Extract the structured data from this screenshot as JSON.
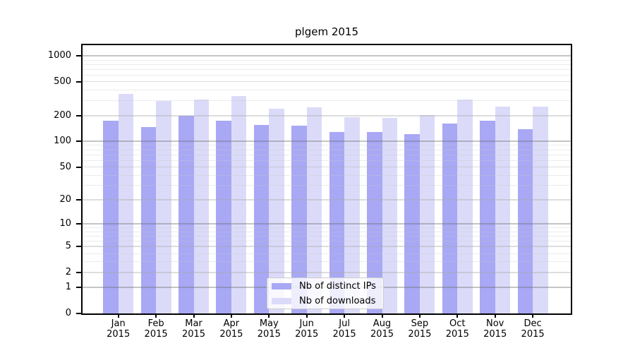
{
  "chart_data": {
    "type": "bar",
    "title": "plgem 2015",
    "categories": [
      "Jan",
      "Feb",
      "Mar",
      "Apr",
      "May",
      "Jun",
      "Jul",
      "Aug",
      "Sep",
      "Oct",
      "Nov",
      "Dec"
    ],
    "year": "2015",
    "series": [
      {
        "name": "Nb of distinct IPs",
        "color": "#a8a8f5",
        "values": [
          174,
          148,
          200,
          174,
          156,
          153,
          129,
          130,
          123,
          164,
          174,
          139
        ]
      },
      {
        "name": "Nb of downloads",
        "color": "#dbdbf9",
        "values": [
          365,
          300,
          310,
          342,
          245,
          253,
          194,
          189,
          206,
          312,
          255,
          259
        ]
      }
    ],
    "yscale": "log1p",
    "ylim": [
      0,
      1340
    ],
    "yticks_labeled": [
      0,
      1,
      2,
      5,
      10,
      20,
      50,
      100,
      200,
      500,
      1000
    ],
    "yticks_major": [
      1,
      10,
      100,
      1000
    ],
    "yticks_minor": [
      3,
      4,
      6,
      7,
      8,
      9,
      30,
      40,
      60,
      70,
      80,
      90,
      300,
      400,
      600,
      700,
      800,
      900
    ],
    "grid": true,
    "legend_position": "lower-center"
  }
}
